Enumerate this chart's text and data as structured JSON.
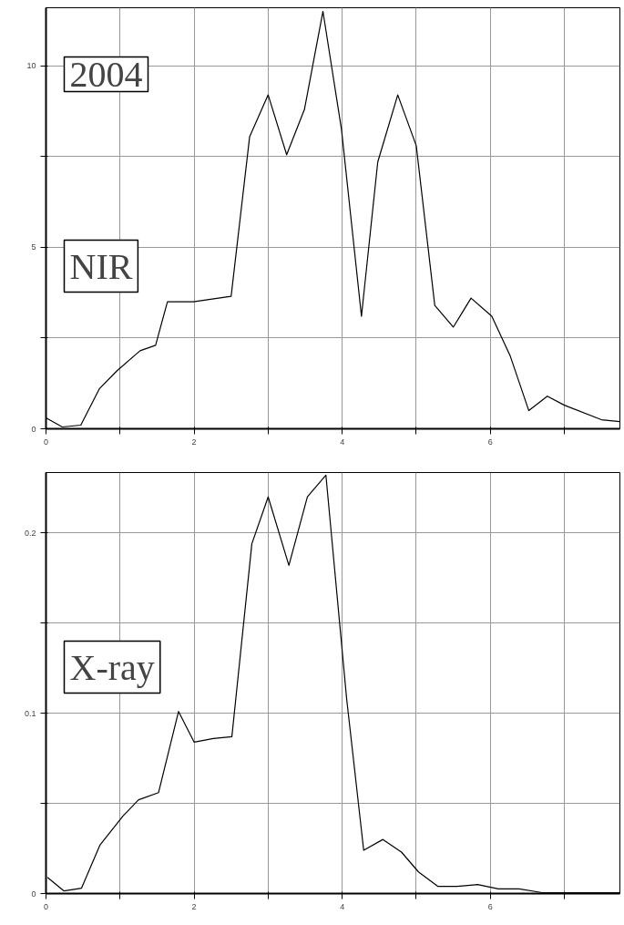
{
  "chart_data": [
    {
      "type": "line",
      "annotations": [
        "2004",
        "NIR"
      ],
      "grid": true,
      "xlim": [
        0,
        7.75
      ],
      "ylim": [
        0,
        11.6
      ],
      "xticks": [
        0,
        {
          "value": 1,
          "label": null
        },
        2,
        {
          "value": 3,
          "label": null
        },
        4,
        {
          "value": 5,
          "label": null
        },
        6,
        {
          "value": 7,
          "label": null
        }
      ],
      "yticks": [
        0,
        {
          "value": 2.5,
          "label": null
        },
        5,
        {
          "value": 7.5,
          "label": null
        },
        10
      ],
      "series": [
        {
          "color": "#000000",
          "x": [
            0,
            0.22,
            0.47,
            0.72,
            0.96,
            1.27,
            1.48,
            1.64,
            1.99,
            2.5,
            2.75,
            3.0,
            3.25,
            3.49,
            3.74,
            3.99,
            4.26,
            4.48,
            4.75,
            5.0,
            5.25,
            5.5,
            5.74,
            6.02,
            6.27,
            6.52,
            6.77,
            7.0,
            7.5,
            7.75
          ],
          "values": [
            0.3,
            0.05,
            0.1,
            1.1,
            1.6,
            2.15,
            2.3,
            3.5,
            3.5,
            3.65,
            8.05,
            9.2,
            7.55,
            8.8,
            11.5,
            8.25,
            3.1,
            7.35,
            9.2,
            7.8,
            3.4,
            2.8,
            3.6,
            3.1,
            2.0,
            0.5,
            0.9,
            0.65,
            0.25,
            0.2
          ]
        }
      ]
    },
    {
      "type": "line",
      "annotations": [
        "X-ray"
      ],
      "grid": true,
      "xlim": [
        0,
        7.75
      ],
      "ylim": [
        0,
        0.2335
      ],
      "xticks": [
        0,
        {
          "value": 1,
          "label": null
        },
        2,
        {
          "value": 3,
          "label": null
        },
        4,
        {
          "value": 5,
          "label": null
        },
        6,
        {
          "value": 7,
          "label": null
        }
      ],
      "yticks": [
        0,
        {
          "value": 0.05,
          "label": null
        },
        0.1,
        {
          "value": 0.15,
          "label": null
        },
        0.2
      ],
      "series": [
        {
          "color": "#000000",
          "x": [
            0.02,
            0.24,
            0.48,
            0.73,
            1.04,
            1.25,
            1.52,
            1.79,
            2.0,
            2.26,
            2.51,
            2.78,
            3.0,
            3.28,
            3.53,
            3.78,
            4.06,
            4.29,
            4.55,
            4.8,
            5.03,
            5.29,
            5.55,
            5.83,
            6.11,
            6.39,
            6.7,
            7.19,
            7.75
          ],
          "values": [
            0.009,
            0.0015,
            0.003,
            0.027,
            0.043,
            0.052,
            0.056,
            0.101,
            0.084,
            0.086,
            0.087,
            0.194,
            0.22,
            0.182,
            0.22,
            0.232,
            0.108,
            0.024,
            0.03,
            0.023,
            0.012,
            0.004,
            0.004,
            0.005,
            0.0026,
            0.0026,
            0.0005,
            0.0005,
            0.0005
          ]
        }
      ]
    }
  ]
}
